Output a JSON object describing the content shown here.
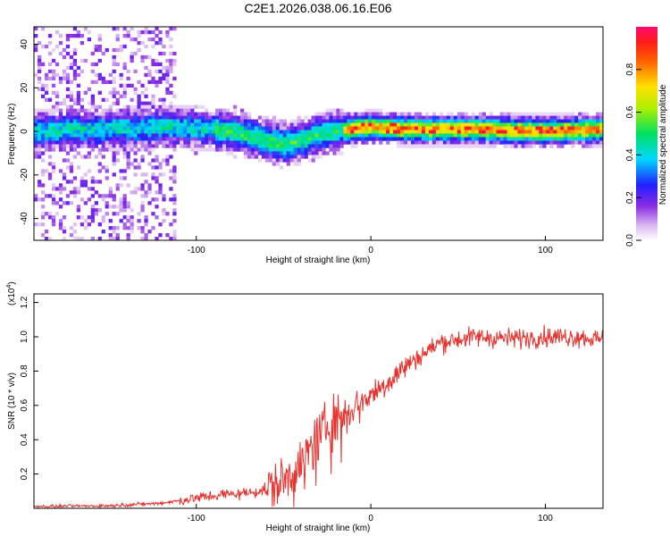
{
  "title": "C2E1.2026.038.06.16.E06",
  "chart_data": [
    {
      "type": "heatmap",
      "name": "spectrogram",
      "xlabel": "Height of straight line (km)",
      "ylabel": "Frequency (Hz)",
      "xlim": [
        -193,
        133
      ],
      "ylim": [
        -50,
        48
      ],
      "xticks": [
        -100,
        0,
        100
      ],
      "yticks": [
        -40,
        -20,
        0,
        20,
        40
      ],
      "ridge": {
        "x": [
          -193,
          -150,
          -110,
          -90,
          -80,
          -70,
          -60,
          -50,
          -42,
          -35,
          -28,
          -20,
          -10,
          0,
          20,
          60,
          100,
          133
        ],
        "freq": [
          0,
          1,
          2,
          1,
          0,
          -2,
          -4,
          -6,
          -5,
          -3,
          -1,
          0,
          1,
          2,
          1,
          1,
          0,
          1
        ]
      },
      "colorbar": {
        "label": "Normalized spectral amplitude",
        "range": [
          0,
          1
        ],
        "ticks": [
          0.0,
          0.2,
          0.4,
          0.6,
          0.8
        ],
        "tick_labels": [
          "0.0",
          "0.2",
          "0.4",
          "0.6",
          "0.8"
        ]
      }
    },
    {
      "type": "line",
      "name": "snr",
      "xlabel": "Height of straight line (km)",
      "ylabel": "SNR (10 * v/v)",
      "scale_label": "(x10",
      "scale_exp": "4",
      "scale_close": ")",
      "xlim": [
        -193,
        133
      ],
      "ylim": [
        0,
        1.25
      ],
      "xticks": [
        -100,
        0,
        100
      ],
      "yticks": [
        0.2,
        0.4,
        0.6,
        0.8,
        1.0,
        1.2
      ],
      "ytick_labels": [
        "0.2",
        "0.4",
        "0.6",
        "0.8",
        "1.0",
        "1.2"
      ],
      "color": "#e8322d",
      "trend": {
        "x": [
          -193,
          -150,
          -120,
          -100,
          -85,
          -70,
          -60,
          -50,
          -40,
          -30,
          -20,
          -10,
          0,
          10,
          20,
          30,
          40,
          60,
          80,
          100,
          120,
          133
        ],
        "y": [
          0.01,
          0.015,
          0.03,
          0.06,
          0.08,
          0.09,
          0.11,
          0.16,
          0.26,
          0.42,
          0.52,
          0.6,
          0.66,
          0.74,
          0.83,
          0.9,
          0.97,
          1.0,
          0.99,
          1.0,
          1.0,
          0.98
        ]
      }
    }
  ]
}
